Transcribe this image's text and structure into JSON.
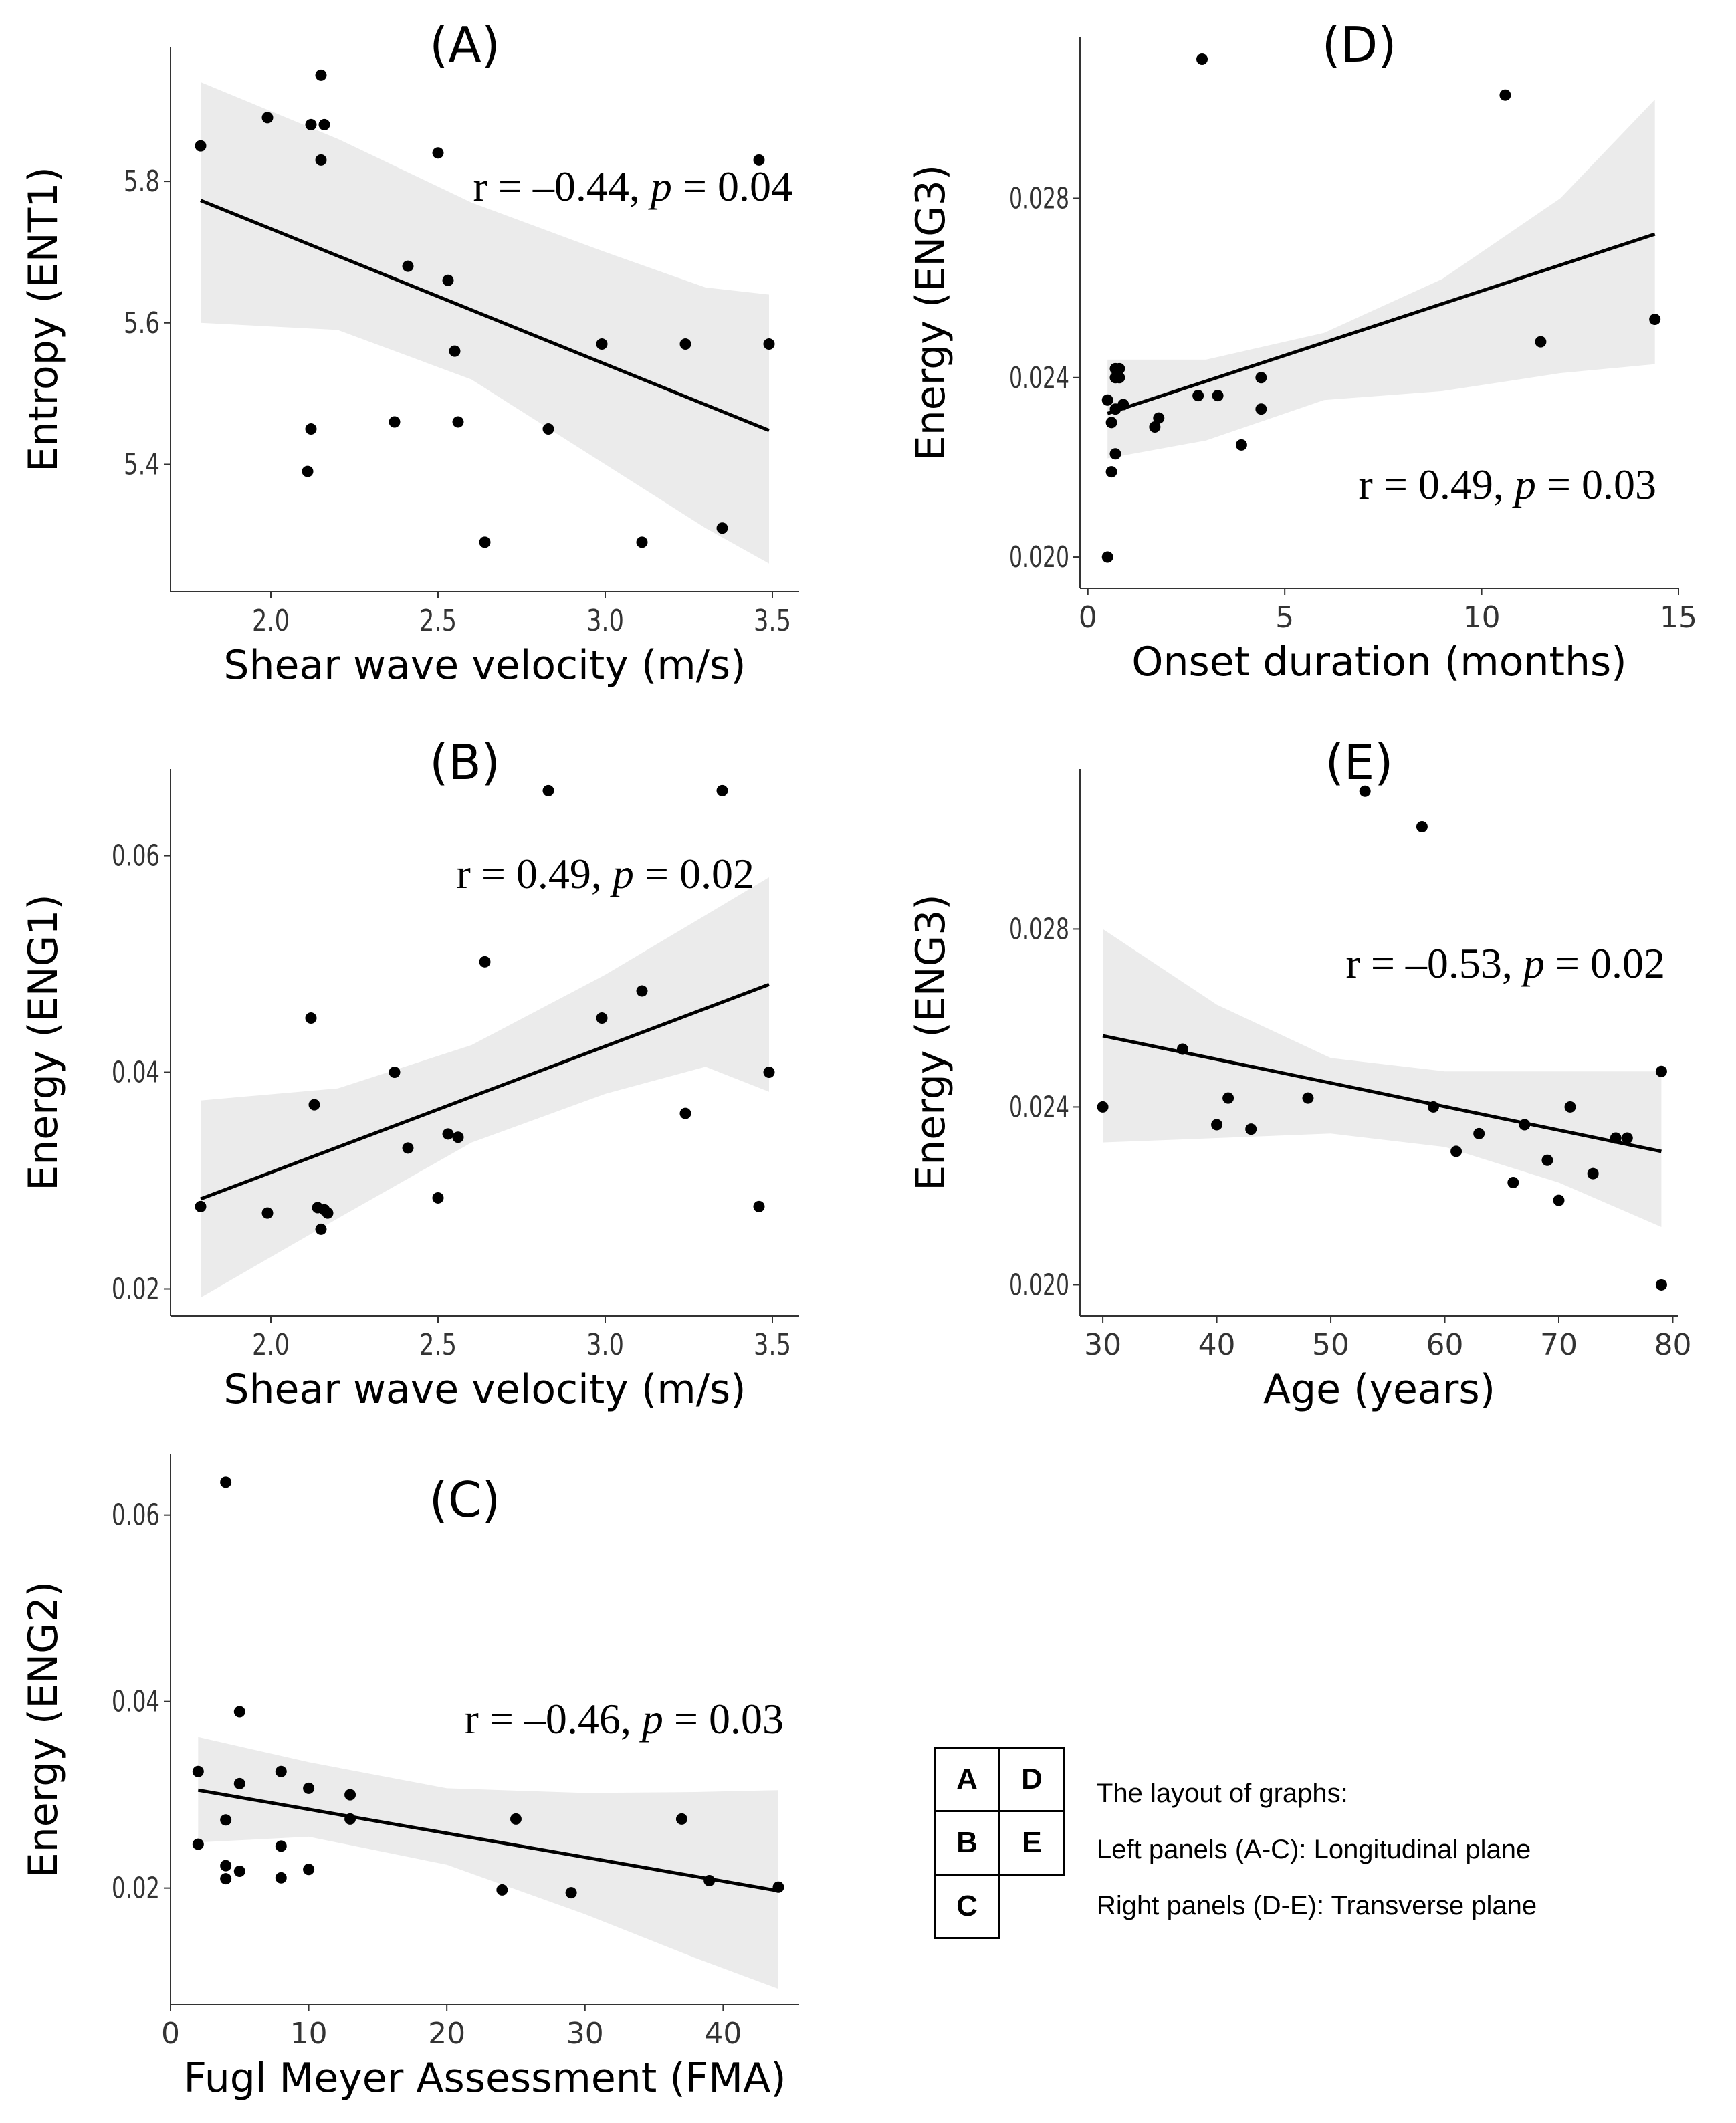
{
  "chart_data": [
    {
      "id": "A",
      "type": "scatter",
      "title": "(A)",
      "xlabel": "Shear wave velocity (m/s)",
      "ylabel": "Entropy (ENT1)",
      "annotation": {
        "r": "r = –0.44, ",
        "p": "p",
        "rest": " = 0.04"
      },
      "xlim": [
        1.7,
        3.58
      ],
      "ylim": [
        5.22,
        5.99
      ],
      "xticks": [
        2.0,
        2.5,
        3.0,
        3.5
      ],
      "xtick_labels": [
        "2.0",
        "2.5",
        "3.0",
        "3.5"
      ],
      "yticks": [
        5.4,
        5.6,
        5.8
      ],
      "ytick_labels": [
        "5.4",
        "5.6",
        "5.8"
      ],
      "points": [
        [
          1.79,
          5.85
        ],
        [
          1.99,
          5.89
        ],
        [
          2.12,
          5.88
        ],
        [
          2.15,
          5.95
        ],
        [
          2.16,
          5.88
        ],
        [
          2.15,
          5.83
        ],
        [
          2.5,
          5.84
        ],
        [
          3.46,
          5.83
        ],
        [
          2.41,
          5.68
        ],
        [
          2.53,
          5.66
        ],
        [
          2.55,
          5.56
        ],
        [
          2.99,
          5.57
        ],
        [
          3.24,
          5.57
        ],
        [
          3.49,
          5.57
        ],
        [
          2.12,
          5.45
        ],
        [
          2.37,
          5.46
        ],
        [
          2.56,
          5.46
        ],
        [
          2.83,
          5.45
        ],
        [
          2.11,
          5.39
        ],
        [
          2.64,
          5.29
        ],
        [
          3.11,
          5.29
        ],
        [
          3.35,
          5.31
        ]
      ],
      "fit": {
        "x": [
          1.79,
          3.49
        ],
        "y": [
          5.773,
          5.448
        ]
      },
      "ci_upper": [
        [
          1.79,
          5.94
        ],
        [
          2.2,
          5.86
        ],
        [
          2.6,
          5.77
        ],
        [
          3.0,
          5.7
        ],
        [
          3.3,
          5.65
        ],
        [
          3.49,
          5.64
        ]
      ],
      "ci_lower": [
        [
          1.79,
          5.6
        ],
        [
          2.2,
          5.59
        ],
        [
          2.6,
          5.52
        ],
        [
          3.0,
          5.4
        ],
        [
          3.3,
          5.31
        ],
        [
          3.49,
          5.26
        ]
      ]
    },
    {
      "id": "B",
      "type": "scatter",
      "title": "(B)",
      "xlabel": "Shear wave velocity (m/s)",
      "ylabel": "Energy (ENG1)",
      "annotation": {
        "r": "r = 0.49, ",
        "p": "p",
        "rest": " = 0.02"
      },
      "xlim": [
        1.7,
        3.58
      ],
      "ylim": [
        0.0175,
        0.068
      ],
      "xticks": [
        2.0,
        2.5,
        3.0,
        3.5
      ],
      "xtick_labels": [
        "2.0",
        "2.5",
        "3.0",
        "3.5"
      ],
      "yticks": [
        0.02,
        0.04,
        0.06
      ],
      "ytick_labels": [
        "0.02",
        "0.04",
        "0.06"
      ],
      "points": [
        [
          2.83,
          0.066
        ],
        [
          3.35,
          0.066
        ],
        [
          2.64,
          0.0502
        ],
        [
          2.12,
          0.045
        ],
        [
          2.99,
          0.045
        ],
        [
          3.11,
          0.0475
        ],
        [
          2.13,
          0.037
        ],
        [
          2.37,
          0.04
        ],
        [
          3.49,
          0.04
        ],
        [
          3.24,
          0.0362
        ],
        [
          2.41,
          0.033
        ],
        [
          2.53,
          0.0343
        ],
        [
          2.56,
          0.034
        ],
        [
          1.79,
          0.0276
        ],
        [
          1.99,
          0.027
        ],
        [
          2.14,
          0.0275
        ],
        [
          2.16,
          0.0273
        ],
        [
          2.17,
          0.027
        ],
        [
          2.15,
          0.0255
        ],
        [
          2.5,
          0.0284
        ],
        [
          3.46,
          0.0276
        ]
      ],
      "fit": {
        "x": [
          1.79,
          3.49
        ],
        "y": [
          0.0283,
          0.0481
        ]
      },
      "ci_upper": [
        [
          1.79,
          0.0374
        ],
        [
          2.2,
          0.0385
        ],
        [
          2.6,
          0.0425
        ],
        [
          3.0,
          0.049
        ],
        [
          3.3,
          0.0545
        ],
        [
          3.49,
          0.058
        ]
      ],
      "ci_lower": [
        [
          1.79,
          0.0192
        ],
        [
          2.2,
          0.0265
        ],
        [
          2.6,
          0.0335
        ],
        [
          3.0,
          0.038
        ],
        [
          3.3,
          0.0405
        ],
        [
          3.49,
          0.0382
        ]
      ]
    },
    {
      "id": "C",
      "type": "scatter",
      "title": "(C)",
      "xlabel": "Fugl Meyer Assessment (FMA)",
      "ylabel": "Energy (ENG2)",
      "annotation": {
        "r": "r = –0.46, ",
        "p": "p",
        "rest": " = 0.03"
      },
      "xlim": [
        0,
        45.5
      ],
      "ylim": [
        0.0075,
        0.0665
      ],
      "xticks": [
        0,
        10,
        20,
        30,
        40
      ],
      "xtick_labels": [
        "0",
        "10",
        "20",
        "30",
        "40"
      ],
      "yticks": [
        0.02,
        0.04,
        0.06
      ],
      "ytick_labels": [
        "0.02",
        "0.04",
        "0.06"
      ],
      "points": [
        [
          4,
          0.0635
        ],
        [
          5,
          0.0389
        ],
        [
          2,
          0.0325
        ],
        [
          5,
          0.0312
        ],
        [
          8,
          0.0325
        ],
        [
          10,
          0.0307
        ],
        [
          13,
          0.03
        ],
        [
          4,
          0.0273
        ],
        [
          13,
          0.0274
        ],
        [
          25,
          0.0274
        ],
        [
          37,
          0.0274
        ],
        [
          2,
          0.0247
        ],
        [
          8,
          0.0245
        ],
        [
          4,
          0.0224
        ],
        [
          5,
          0.0218
        ],
        [
          10,
          0.022
        ],
        [
          4,
          0.021
        ],
        [
          8,
          0.0211
        ],
        [
          24,
          0.0198
        ],
        [
          29,
          0.0195
        ],
        [
          39,
          0.0208
        ],
        [
          44,
          0.0201
        ]
      ],
      "fit": {
        "x": [
          2,
          44
        ],
        "y": [
          0.0305,
          0.0197
        ]
      },
      "ci_upper": [
        [
          2,
          0.0362
        ],
        [
          10,
          0.0335
        ],
        [
          20,
          0.0307
        ],
        [
          30,
          0.0302
        ],
        [
          38,
          0.0303
        ],
        [
          44,
          0.0305
        ]
      ],
      "ci_lower": [
        [
          2,
          0.0249
        ],
        [
          10,
          0.0255
        ],
        [
          20,
          0.0225
        ],
        [
          30,
          0.0172
        ],
        [
          38,
          0.0125
        ],
        [
          44,
          0.0092
        ]
      ]
    },
    {
      "id": "D",
      "type": "scatter",
      "title": "(D)",
      "xlabel": "Onset duration (months)",
      "ylabel": "Energy (ENG3)",
      "annotation": {
        "r": "r = 0.49, ",
        "p": "p",
        "rest": " = 0.03"
      },
      "xlim": [
        -0.2,
        15
      ],
      "ylim": [
        0.0193,
        0.0316
      ],
      "xticks": [
        0,
        5,
        10,
        15
      ],
      "xtick_labels": [
        "0",
        "5",
        "10",
        "15"
      ],
      "yticks": [
        0.02,
        0.024,
        0.028
      ],
      "ytick_labels": [
        "0.020",
        "0.024",
        "0.028"
      ],
      "points": [
        [
          2.9,
          0.0311
        ],
        [
          10.6,
          0.0303
        ],
        [
          0.5,
          0.0235
        ],
        [
          0.6,
          0.023
        ],
        [
          0.7,
          0.0242
        ],
        [
          0.7,
          0.024
        ],
        [
          0.8,
          0.0242
        ],
        [
          0.8,
          0.024
        ],
        [
          0.9,
          0.0234
        ],
        [
          0.7,
          0.0233
        ],
        [
          0.7,
          0.0223
        ],
        [
          0.6,
          0.0219
        ],
        [
          0.5,
          0.02
        ],
        [
          1.7,
          0.0229
        ],
        [
          1.8,
          0.0231
        ],
        [
          2.8,
          0.0236
        ],
        [
          3.3,
          0.0236
        ],
        [
          3.9,
          0.0225
        ],
        [
          4.4,
          0.0233
        ],
        [
          4.4,
          0.024
        ],
        [
          11.5,
          0.0248
        ],
        [
          14.4,
          0.0253
        ]
      ],
      "fit": {
        "x": [
          0.5,
          14.4
        ],
        "y": [
          0.0232,
          0.0272
        ]
      },
      "ci_upper": [
        [
          0.5,
          0.0244
        ],
        [
          3,
          0.0244
        ],
        [
          6,
          0.025
        ],
        [
          9,
          0.0262
        ],
        [
          12,
          0.028
        ],
        [
          14.4,
          0.0302
        ]
      ],
      "ci_lower": [
        [
          0.5,
          0.0222
        ],
        [
          3,
          0.0226
        ],
        [
          6,
          0.0235
        ],
        [
          9,
          0.0237
        ],
        [
          12,
          0.0241
        ],
        [
          14.4,
          0.0243
        ]
      ]
    },
    {
      "id": "E",
      "type": "scatter",
      "title": "(E)",
      "xlabel": "Age (years)",
      "ylabel": "Energy (ENG3)",
      "annotation": {
        "r": "r = –0.53, ",
        "p": "p",
        "rest": " = 0.02"
      },
      "xlim": [
        28,
        80.5
      ],
      "ylim": [
        0.0193,
        0.0316
      ],
      "xticks": [
        30,
        40,
        50,
        60,
        70,
        80
      ],
      "xtick_labels": [
        "30",
        "40",
        "50",
        "60",
        "70",
        "80"
      ],
      "yticks": [
        0.02,
        0.024,
        0.028
      ],
      "ytick_labels": [
        "0.020",
        "0.024",
        "0.028"
      ],
      "points": [
        [
          53,
          0.0311
        ],
        [
          58,
          0.0303
        ],
        [
          30,
          0.024
        ],
        [
          37,
          0.0253
        ],
        [
          40,
          0.0236
        ],
        [
          41,
          0.0242
        ],
        [
          43,
          0.0235
        ],
        [
          48,
          0.0242
        ],
        [
          59,
          0.024
        ],
        [
          61,
          0.023
        ],
        [
          63,
          0.0234
        ],
        [
          66,
          0.0223
        ],
        [
          67,
          0.0236
        ],
        [
          69,
          0.0228
        ],
        [
          70,
          0.0219
        ],
        [
          71,
          0.024
        ],
        [
          73,
          0.0225
        ],
        [
          75,
          0.0233
        ],
        [
          76,
          0.0233
        ],
        [
          79,
          0.0248
        ],
        [
          79,
          0.02
        ]
      ],
      "fit": {
        "x": [
          30,
          79
        ],
        "y": [
          0.0256,
          0.023
        ]
      },
      "ci_upper": [
        [
          30,
          0.028
        ],
        [
          40,
          0.0263
        ],
        [
          50,
          0.0251
        ],
        [
          60,
          0.0248
        ],
        [
          70,
          0.0248
        ],
        [
          79,
          0.0248
        ]
      ],
      "ci_lower": [
        [
          30,
          0.0232
        ],
        [
          40,
          0.0233
        ],
        [
          50,
          0.0234
        ],
        [
          60,
          0.0231
        ],
        [
          70,
          0.0223
        ],
        [
          79,
          0.0213
        ]
      ]
    }
  ],
  "legend": {
    "cells": [
      "A",
      "D",
      "B",
      "E",
      "C"
    ],
    "line1": "The layout of graphs:",
    "line2": "Left panels (A-C): Longitudinal plane",
    "line3": "Right panels (D-E): Transverse plane"
  }
}
